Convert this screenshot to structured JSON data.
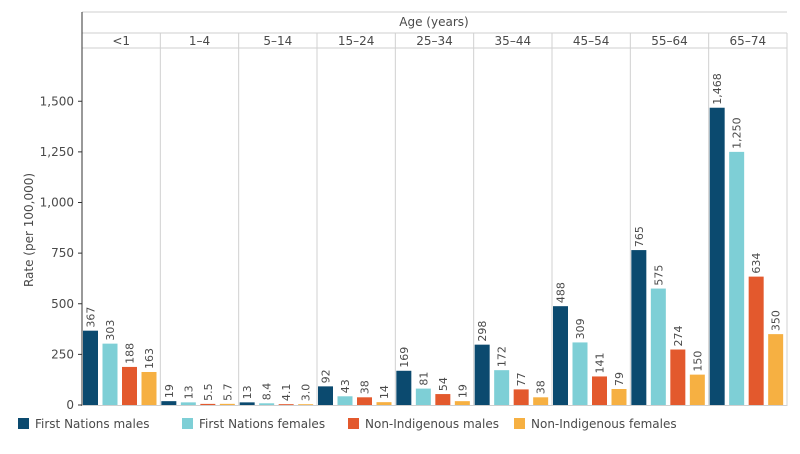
{
  "chart_data": {
    "type": "bar",
    "title": "",
    "facet_title": "Age (years)",
    "xlabel": "",
    "ylabel": "Rate (per 100,000)",
    "ylim": [
      0,
      1750
    ],
    "yticks": [
      0,
      250,
      500,
      750,
      1000,
      1250,
      1500
    ],
    "ytick_labels": [
      "0",
      "250",
      "500",
      "750",
      "1,000",
      "1,250",
      "1,500"
    ],
    "grid": false,
    "legend_position": "bottom",
    "categories": [
      "<1",
      "1–4",
      "5–14",
      "15–24",
      "25–34",
      "35–44",
      "45–54",
      "55–64",
      "65–74"
    ],
    "series": [
      {
        "name": "First Nations males",
        "color": "#0b4a6f",
        "values": [
          367,
          19,
          13,
          92,
          169,
          298,
          488,
          765,
          1468
        ],
        "labels": [
          "367",
          "19",
          "13",
          "92",
          "169",
          "298",
          "488",
          "765",
          "1,468"
        ]
      },
      {
        "name": "First Nations females",
        "color": "#7ecfd6",
        "values": [
          303,
          13,
          8.4,
          43,
          81,
          172,
          309,
          575,
          1250
        ],
        "labels": [
          "303",
          "13",
          "8.4",
          "43",
          "81",
          "172",
          "309",
          "575",
          "1,250"
        ]
      },
      {
        "name": "Non-Indigenous males",
        "color": "#e3592d",
        "values": [
          188,
          5.5,
          4.1,
          38,
          54,
          77,
          141,
          274,
          634
        ],
        "labels": [
          "188",
          "5.5",
          "4.1",
          "38",
          "54",
          "77",
          "141",
          "274",
          "634"
        ]
      },
      {
        "name": "Non-Indigenous females",
        "color": "#f6b042",
        "values": [
          163,
          5.7,
          3.0,
          14,
          19,
          38,
          79,
          150,
          350
        ],
        "labels": [
          "163",
          "5.7",
          "3.0",
          "14",
          "19",
          "38",
          "79",
          "150",
          "350"
        ]
      }
    ]
  }
}
